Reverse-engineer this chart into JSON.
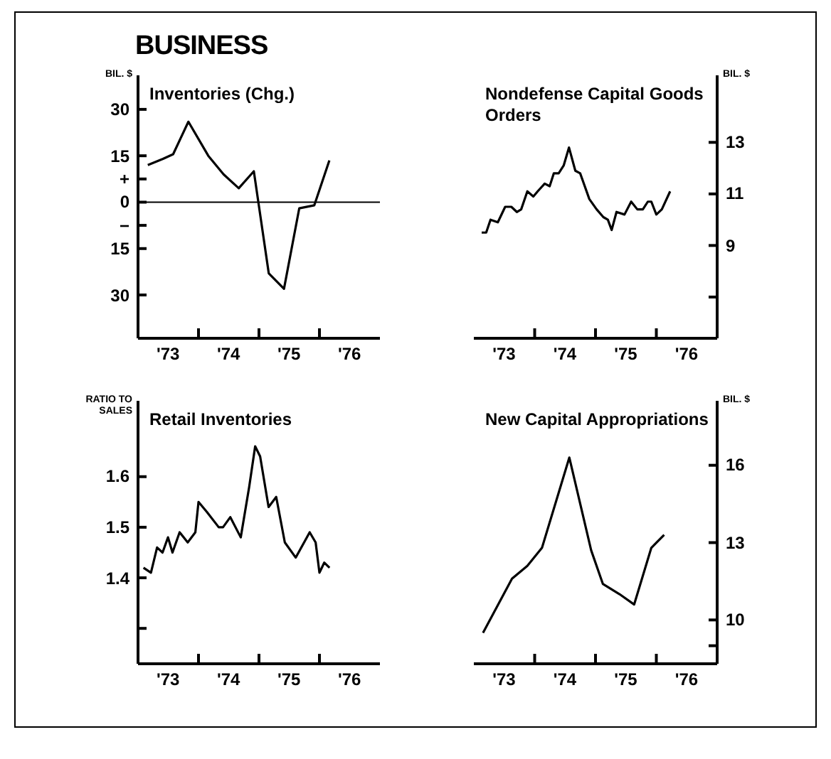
{
  "chart_data": [
    {
      "type": "line",
      "title": "Inventories (Chg.)",
      "ylabel": "BIL. $",
      "annotations": [
        "BUSINESS"
      ],
      "x": [
        "1973-03",
        "1973-06",
        "1973-08",
        "1973-11",
        "1974-03",
        "1974-06",
        "1974-09",
        "1974-12",
        "1975-03",
        "1975-06",
        "1975-09",
        "1975-12",
        "1976-03"
      ],
      "series": [
        {
          "color": "#000000",
          "values": [
            12,
            14,
            15.5,
            26,
            15,
            9,
            4.5,
            10,
            -23,
            -28,
            -2,
            -1,
            13.5
          ]
        }
      ],
      "xlim": [
        "1973",
        "1977"
      ],
      "xticks": [
        {
          "value": "1973-07",
          "label": "'73"
        },
        {
          "value": "1974",
          "label": null
        },
        {
          "value": "1974-07",
          "label": "'74"
        },
        {
          "value": "1975",
          "label": null
        },
        {
          "value": "1975-07",
          "label": "'75"
        },
        {
          "value": "1976",
          "label": null
        },
        {
          "value": "1976-07",
          "label": "'76"
        }
      ],
      "ylim": [
        -44,
        41
      ],
      "yticks": [
        30,
        15,
        {
          "value": 7.5,
          "label": "+"
        },
        0,
        {
          "value": -7.5,
          "label": "−"
        },
        {
          "value": -15,
          "label": "15"
        },
        {
          "value": -30,
          "label": "30"
        }
      ],
      "ref_lines": [
        {
          "axis": "y",
          "value": 0
        }
      ]
    },
    {
      "type": "line",
      "title": "Nondefense Capital Goods Orders",
      "y2label": "BIL. $",
      "x": [
        "1973-02-17",
        "1973-03-16",
        "1973-04-11",
        "1973-05-25",
        "1973-07-08",
        "1973-08-14",
        "1973-09-16",
        "1973-10-12",
        "1973-11-18",
        "1973-12-24",
        "1974-01-19",
        "1974-03-02",
        "1974-04-01",
        "1974-04-26",
        "1974-05-25",
        "1974-06-24",
        "1974-07-26",
        "1974-09-02",
        "1974-10-01",
        "1974-11-25",
        "1975-01-08",
        "1975-02-17",
        "1975-03-16",
        "1975-04-08",
        "1975-05-07",
        "1975-06-24",
        "1975-08-03",
        "1975-09-09",
        "1975-10-12",
        "1975-11-11",
        "1975-12-02",
        "1976-01-01",
        "1976-02-03",
        "1976-03-24"
      ],
      "series": [
        {
          "color": "#000000",
          "axis": "y2",
          "values": [
            9.5,
            9.5,
            10,
            9.9,
            10.5,
            10.5,
            10.3,
            10.4,
            11.1,
            10.9,
            11.1,
            11.4,
            11.3,
            11.8,
            11.8,
            12.1,
            12.8,
            11.9,
            11.8,
            10.8,
            10.4,
            10.1,
            10,
            9.6,
            10.3,
            10.2,
            10.7,
            10.4,
            10.4,
            10.7,
            10.7,
            10.2,
            10.4,
            11.1
          ]
        }
      ],
      "xlim": [
        "1973",
        "1977"
      ],
      "xticks": [
        {
          "value": "1973-07",
          "label": "'73"
        },
        {
          "value": "1974",
          "label": null
        },
        {
          "value": "1974-07",
          "label": "'74"
        },
        {
          "value": "1975",
          "label": null
        },
        {
          "value": "1975-07",
          "label": "'75"
        },
        {
          "value": "1976",
          "label": null
        },
        {
          "value": "1976-07",
          "label": "'76"
        }
      ],
      "y2lim": [
        5.4,
        15.6
      ],
      "y2ticks": [
        {
          "value": 7,
          "label": null
        },
        9,
        11,
        13
      ]
    },
    {
      "type": "line",
      "title": "Retail Inventories",
      "ylabel": "RATIO TO SALES",
      "x": [
        "1973-02-03",
        "1973-03-20",
        "1973-04-26",
        "1973-05-29",
        "1973-07-01",
        "1973-07-28",
        "1973-09-09",
        "1973-10-28",
        "1973-12-13",
        "1974-01-01",
        "1974-02-21",
        "1974-05-03",
        "1974-05-29",
        "1974-07-12",
        "1974-09-13",
        "1974-11-03",
        "1974-12-09",
        "1975-01-08",
        "1975-02-28",
        "1975-04-15",
        "1975-06-06",
        "1975-08-11",
        "1975-11-03",
        "1975-12-09",
        "1976-01-01",
        "1976-01-30",
        "1976-03-02"
      ],
      "series": [
        {
          "color": "#000000",
          "values": [
            1.42,
            1.41,
            1.46,
            1.45,
            1.48,
            1.45,
            1.49,
            1.47,
            1.49,
            1.55,
            1.53,
            1.5,
            1.5,
            1.52,
            1.48,
            1.58,
            1.66,
            1.64,
            1.54,
            1.56,
            1.47,
            1.44,
            1.49,
            1.47,
            1.41,
            1.43,
            1.42
          ]
        }
      ],
      "xlim": [
        "1973",
        "1977"
      ],
      "xticks": [
        {
          "value": "1973-07",
          "label": "'73"
        },
        {
          "value": "1974",
          "label": null
        },
        {
          "value": "1974-07",
          "label": "'74"
        },
        {
          "value": "1975",
          "label": null
        },
        {
          "value": "1975-07",
          "label": "'75"
        },
        {
          "value": "1976",
          "label": null
        },
        {
          "value": "1976-07",
          "label": "'76"
        }
      ],
      "ylim": [
        1.23,
        1.75
      ],
      "yticks": [
        {
          "value": 1.3,
          "label": null
        },
        1.4,
        1.5,
        1.6
      ]
    },
    {
      "type": "line",
      "title": "New Capital Appropriations",
      "y2label": "BIL. $",
      "x": [
        "1973-02-25",
        "1973-08-18",
        "1973-11-18",
        "1974-02-14",
        "1974-07-28",
        "1974-12-06",
        "1975-02-14",
        "1975-05-25",
        "1975-08-21",
        "1975-12-02",
        "1976-02-17"
      ],
      "series": [
        {
          "color": "#000000",
          "axis": "y2",
          "values": [
            9.5,
            11.6,
            12.1,
            12.8,
            16.3,
            12.7,
            11.4,
            11,
            10.6,
            12.8,
            13.3
          ]
        }
      ],
      "xlim": [
        "1973",
        "1977"
      ],
      "xticks": [
        {
          "value": "1973-07",
          "label": "'73"
        },
        {
          "value": "1974",
          "label": null
        },
        {
          "value": "1974-07",
          "label": "'74"
        },
        {
          "value": "1975",
          "label": null
        },
        {
          "value": "1975-07",
          "label": "'75"
        },
        {
          "value": "1976",
          "label": null
        },
        {
          "value": "1976-07",
          "label": "'76"
        }
      ],
      "y2lim": [
        8.3,
        18.5
      ],
      "y2ticks": [
        {
          "value": 9,
          "label": null
        },
        10,
        13,
        16
      ]
    }
  ]
}
